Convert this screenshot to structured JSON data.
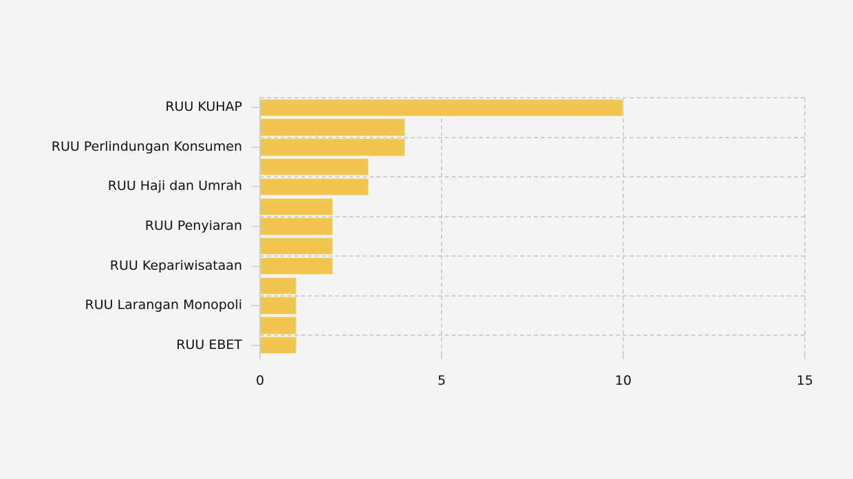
{
  "chart_data": {
    "type": "bar",
    "orientation": "horizontal",
    "title": "",
    "xlabel": "",
    "ylabel": "",
    "xlim": [
      0,
      15
    ],
    "x_ticks": [
      "0",
      "5",
      "10",
      "15"
    ],
    "grid": true,
    "legend": null,
    "bar_color": "#f0c650",
    "background_color": "#f4f4f4",
    "grid_color": "#cfcfcf",
    "categories": [
      "RUU KUHAP",
      "",
      "RUU Perlindungan Konsumen",
      "",
      "RUU Haji dan Umrah",
      "",
      "RUU Penyiaran",
      "",
      "RUU Kepariwisataan",
      "",
      "RUU Larangan Monopoli",
      "",
      "RUU EBET"
    ],
    "values": [
      10,
      4,
      4,
      3,
      3,
      2,
      2,
      2,
      2,
      1,
      1,
      1,
      1
    ],
    "visible_labels": [
      {
        "label": "RUU KUHAP",
        "bar_index": 0
      },
      {
        "label": "RUU Perlindungan Konsumen",
        "bar_index": 2
      },
      {
        "label": "RUU Haji dan Umrah",
        "bar_index": 4
      },
      {
        "label": "RUU Penyiaran",
        "bar_index": 6
      },
      {
        "label": "RUU Kepariwisataan",
        "bar_index": 8
      },
      {
        "label": "RUU Larangan Monopoli",
        "bar_index": 10
      },
      {
        "label": "RUU EBET",
        "bar_index": 12
      }
    ]
  }
}
